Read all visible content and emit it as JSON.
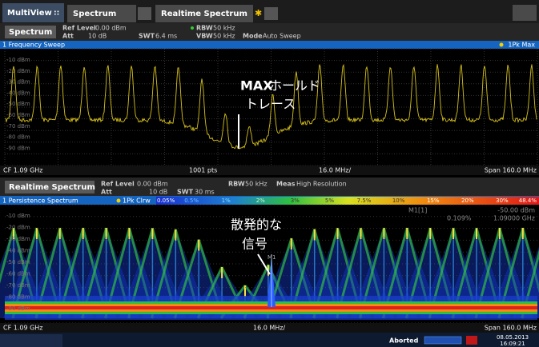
{
  "tabs": [
    "MultiView",
    "Spectrum",
    "Realtime Spectrum"
  ],
  "window1": {
    "name": "Spectrum",
    "ref_level_label": "Ref Level",
    "ref_level": "0.00 dBm",
    "att_label": "Att",
    "att": "10 dB",
    "swt_label": "SWT",
    "swt": "6.4 ms",
    "rbw_label": "RBW",
    "rbw": "50 kHz",
    "vbw_label": "VBW",
    "vbw": "50 kHz",
    "mode_label": "Mode",
    "mode": "Auto Sweep",
    "title": "1 Frequency Sweep",
    "trace": "1Pk Max",
    "y_labels": [
      "-10 dBm",
      "-20 dBm",
      "-30 dBm",
      "-40 dBm",
      "-50 dBm",
      "-60 dBm",
      "-70 dBm",
      "-80 dBm",
      "-90 dBm"
    ],
    "annotation": [
      "MAX",
      "ホールド",
      "トレース"
    ],
    "footer": {
      "cf": "CF 1.09 GHz",
      "points": "1001 pts",
      "div": "16.0 MHz/",
      "span": "Span 160.0 MHz"
    }
  },
  "window2": {
    "name": "Realtime Spectrum",
    "ref_level_label": "Ref Level",
    "ref_level": "0.00 dBm",
    "att_label": "Att",
    "att": "10 dB",
    "swt_label": "SWT",
    "swt": "30 ms",
    "rbw_label": "RBW",
    "rbw": "50 kHz",
    "meas_label": "Meas",
    "meas": "High Resolution",
    "title": "1 Persistence Spectrum",
    "trace": "1Pk Clrw",
    "scale": [
      "0.05%",
      "0.5%",
      "1%",
      "2%",
      "3%",
      "5%",
      "7.5%",
      "10%",
      "15%",
      "20%",
      "30%",
      "48.4%"
    ],
    "y_labels": [
      "-10 dBm",
      "-20 dBm",
      "-30 dBm",
      "-40 dBm",
      "-50 dBm",
      "-60 dBm",
      "-70 dBm",
      "-80 dBm",
      "-90 dBm"
    ],
    "marker": {
      "label": "M1[1]",
      "level": "-50.00 dBm",
      "persistence": "0.109%",
      "freq": "1.09000 GHz",
      "tag": "M1"
    },
    "annotation": [
      "散発的な",
      "信号"
    ],
    "footer": {
      "cf": "CF 1.09 GHz",
      "div": "16.0 MHz/",
      "span": "Span 160.0 MHz"
    }
  },
  "status": {
    "state": "Aborted",
    "date": "08.05.2013",
    "time": "16:09:21"
  }
}
